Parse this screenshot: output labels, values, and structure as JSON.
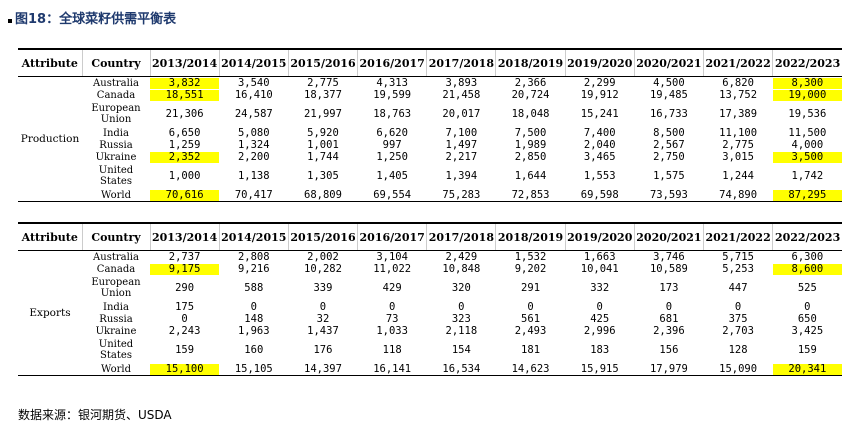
{
  "title": "图18：全球菜籽供需平衡表",
  "tables": [
    {
      "header": [
        "Attribute",
        "Country",
        "2013/2014",
        "2014/2015",
        "2015/2016",
        "2016/2017",
        "2017/2018",
        "2018/2019",
        "2019/2020",
        "2020/2021",
        "2021/2022",
        "2022/2023"
      ],
      "attribute": "Production",
      "rows": [
        {
          "country": "Australia",
          "values": [
            "3,832",
            "3,540",
            "2,775",
            "4,313",
            "3,893",
            "2,366",
            "2,299",
            "4,500",
            "6,820",
            "8,300"
          ]
        },
        {
          "country": "Canada",
          "values": [
            "18,551",
            "16,410",
            "18,377",
            "19,599",
            "21,458",
            "20,724",
            "19,912",
            "19,485",
            "13,752",
            "19,000"
          ]
        },
        {
          "country": "European Union",
          "values": [
            "21,306",
            "24,587",
            "21,997",
            "18,763",
            "20,017",
            "18,048",
            "15,241",
            "16,733",
            "17,389",
            "19,536"
          ]
        },
        {
          "country": "India",
          "values": [
            "6,650",
            "5,080",
            "5,920",
            "6,620",
            "7,100",
            "7,500",
            "7,400",
            "8,500",
            "11,100",
            "11,500"
          ]
        },
        {
          "country": "Russia",
          "values": [
            "1,259",
            "1,324",
            "1,001",
            "997",
            "1,497",
            "1,989",
            "2,040",
            "2,567",
            "2,775",
            "4,000"
          ]
        },
        {
          "country": "Ukraine",
          "values": [
            "2,352",
            "2,200",
            "1,744",
            "1,250",
            "2,217",
            "2,850",
            "3,465",
            "2,750",
            "3,015",
            "3,500"
          ]
        },
        {
          "country": "United States",
          "values": [
            "1,000",
            "1,138",
            "1,305",
            "1,405",
            "1,394",
            "1,644",
            "1,553",
            "1,575",
            "1,244",
            "1,742"
          ]
        },
        {
          "country": "World",
          "values": [
            "70,616",
            "70,417",
            "68,809",
            "69,554",
            "75,283",
            "72,853",
            "69,598",
            "73,593",
            "74,890",
            "87,295"
          ]
        }
      ]
    },
    {
      "header": [
        "Attribute",
        "Country",
        "2013/2014",
        "2014/2015",
        "2015/2016",
        "2016/2017",
        "2017/2018",
        "2018/2019",
        "2019/2020",
        "2020/2021",
        "2021/2022",
        "2022/2023"
      ],
      "attribute": "Exports",
      "rows": [
        {
          "country": "Australia",
          "values": [
            "2,737",
            "2,808",
            "2,002",
            "3,104",
            "2,429",
            "1,532",
            "1,663",
            "3,746",
            "5,715",
            "6,300"
          ]
        },
        {
          "country": "Canada",
          "values": [
            "9,175",
            "9,216",
            "10,282",
            "11,022",
            "10,848",
            "9,202",
            "10,041",
            "10,589",
            "5,253",
            "8,600"
          ]
        },
        {
          "country": "European Union",
          "values": [
            "290",
            "588",
            "339",
            "429",
            "320",
            "291",
            "332",
            "173",
            "447",
            "525"
          ]
        },
        {
          "country": "India",
          "values": [
            "175",
            "0",
            "0",
            "0",
            "0",
            "0",
            "0",
            "0",
            "0",
            "0"
          ]
        },
        {
          "country": "Russia",
          "values": [
            "0",
            "148",
            "32",
            "73",
            "323",
            "561",
            "425",
            "681",
            "375",
            "650"
          ]
        },
        {
          "country": "Ukraine",
          "values": [
            "2,243",
            "1,963",
            "1,437",
            "1,033",
            "2,118",
            "2,493",
            "2,996",
            "2,396",
            "2,703",
            "3,425"
          ]
        },
        {
          "country": "United States",
          "values": [
            "159",
            "160",
            "176",
            "118",
            "154",
            "181",
            "183",
            "156",
            "128",
            "159"
          ]
        },
        {
          "country": "World",
          "values": [
            "15,100",
            "15,105",
            "14,397",
            "16,141",
            "16,534",
            "14,623",
            "15,915",
            "17,979",
            "15,090",
            "20,341"
          ]
        }
      ]
    }
  ],
  "source": "数据来源：银河期货、USDA"
}
